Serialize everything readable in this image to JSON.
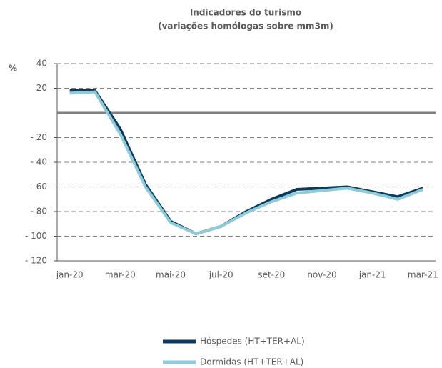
{
  "chart_data": {
    "type": "line",
    "title": "Indicadores do turismo",
    "subtitle": "(variações homólogas sobre mm3m)",
    "y_label": "%",
    "categories": [
      "jan-20",
      null,
      "mar-20",
      null,
      "mai-20",
      null,
      "jul-20",
      null,
      "set-20",
      null,
      "nov-20",
      null,
      "jan-21",
      null,
      "mar-21"
    ],
    "series": [
      {
        "name": "Hóspedes (HT+TER+AL)",
        "color": "#0d3a5c",
        "values": [
          18,
          18,
          -13,
          -58,
          -88,
          -98,
          -92,
          -80,
          -70,
          -62,
          -61,
          -60,
          -64,
          -68,
          -61
        ]
      },
      {
        "name": "Dormidas (HT+TER+AL)",
        "color": "#8ccbd9",
        "values": [
          16,
          17,
          -17,
          -60,
          -89,
          -98,
          -92,
          -81,
          -72,
          -65,
          -63,
          -61,
          -65,
          -70,
          -62
        ]
      }
    ],
    "ylim": [
      -120,
      40
    ],
    "yticks": [
      40,
      20,
      {
        "value": -20,
        "label": "- 20"
      },
      {
        "value": -40,
        "label": "- 40"
      },
      {
        "value": -60,
        "label": "- 60"
      },
      {
        "value": -80,
        "label": "- 80"
      },
      {
        "value": -100,
        "label": "- 100"
      },
      {
        "value": -120,
        "label": "- 120"
      }
    ],
    "zero_line": true,
    "grid": true,
    "legend": "bottom"
  }
}
